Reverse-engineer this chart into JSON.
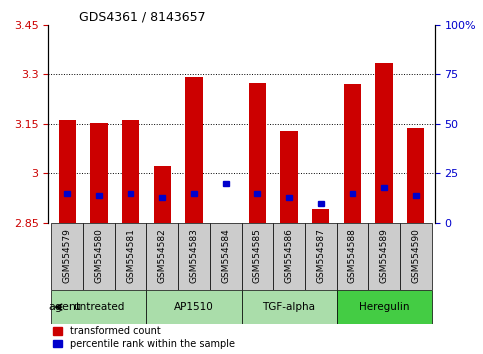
{
  "title": "GDS4361 / 8143657",
  "samples": [
    "GSM554579",
    "GSM554580",
    "GSM554581",
    "GSM554582",
    "GSM554583",
    "GSM554584",
    "GSM554585",
    "GSM554586",
    "GSM554587",
    "GSM554588",
    "GSM554589",
    "GSM554590"
  ],
  "transformed_count": [
    3.163,
    3.152,
    3.162,
    3.023,
    3.293,
    2.851,
    3.273,
    3.128,
    2.892,
    3.272,
    3.335,
    3.138
  ],
  "percentile_rank": [
    15,
    14,
    15,
    13,
    15,
    20,
    15,
    13,
    10,
    15,
    18,
    14
  ],
  "ymin": 2.85,
  "ymax": 3.45,
  "yticks": [
    2.85,
    3.0,
    3.15,
    3.3,
    3.45
  ],
  "ytick_labels": [
    "2.85",
    "3",
    "3.15",
    "3.3",
    "3.45"
  ],
  "right_yticks": [
    0,
    25,
    50,
    75,
    100
  ],
  "right_ytick_labels": [
    "0",
    "25",
    "50",
    "75",
    "100%"
  ],
  "groups": [
    {
      "label": "untreated",
      "start": 0,
      "end": 3,
      "color": "#aaddaa"
    },
    {
      "label": "AP1510",
      "start": 3,
      "end": 6,
      "color": "#aaddaa"
    },
    {
      "label": "TGF-alpha",
      "start": 6,
      "end": 9,
      "color": "#aaddaa"
    },
    {
      "label": "Heregulin",
      "start": 9,
      "end": 12,
      "color": "#44cc44"
    }
  ],
  "bar_color": "#cc0000",
  "percentile_color": "#0000cc",
  "left_axis_color": "#cc0000",
  "right_axis_color": "#0000cc",
  "xtick_bg_color": "#cccccc",
  "agent_label": "agent",
  "legend_items": [
    {
      "label": "transformed count",
      "color": "#cc0000"
    },
    {
      "label": "percentile rank within the sample",
      "color": "#0000cc"
    }
  ]
}
